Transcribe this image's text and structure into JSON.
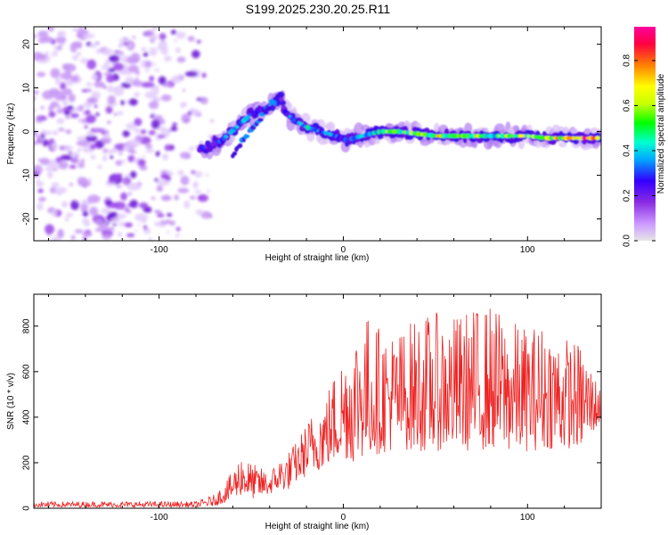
{
  "title": "S199.2025.230.20.25.R11",
  "colors": {
    "snr_line": "#ee2222",
    "noise": "#cc99ff",
    "noise_dark": "#7a24d8",
    "frame": "#000000",
    "colorbar_stops": [
      "#e0e0e0",
      "#cc99ff",
      "#8a2be2",
      "#3300ff",
      "#00b0ff",
      "#00ffd0",
      "#00ff00",
      "#c8ff00",
      "#ffff00",
      "#ff8000",
      "#ff0040",
      "#ff00a0"
    ]
  },
  "chart_data": [
    {
      "type": "heatmap",
      "name": "spectrogram",
      "title": "S199.2025.230.20.25.R11",
      "xlabel": "Height of straight line (km)",
      "ylabel": "Frequency (Hz)",
      "xlim": [
        -168,
        140
      ],
      "ylim": [
        -25,
        24
      ],
      "xticks": [
        -100,
        0,
        100
      ],
      "xtick_labels": [
        "-100",
        "0",
        "100"
      ],
      "yticks": [
        -20,
        -10,
        0,
        10,
        20
      ],
      "ytick_labels": [
        "-20",
        "-10",
        "0",
        "10",
        "20"
      ],
      "colorbar": {
        "label": "Normalized spectral amplitude",
        "range": [
          0,
          0.95
        ],
        "ticks": [
          0,
          0.2,
          0.4,
          0.6,
          0.8
        ],
        "tick_labels": [
          "0.0",
          "0.2",
          "0.4",
          "0.6",
          "0.8"
        ]
      },
      "noise_region_x": [
        -168,
        -72
      ],
      "ridge": {
        "x": [
          -78,
          -66,
          -58,
          -50,
          -44,
          -38,
          -34,
          -32,
          -28,
          -20,
          -12,
          -4,
          2,
          10,
          20,
          30,
          40,
          50,
          60,
          70,
          80,
          90,
          100,
          110,
          120,
          130,
          138
        ],
        "y": [
          -4,
          -2,
          1,
          4,
          5,
          6,
          8,
          5,
          3,
          1,
          0,
          -1,
          -2,
          -1,
          0,
          0,
          -0.5,
          -1,
          -1,
          -1,
          -1,
          -1,
          -1,
          -1.5,
          -1.5,
          -1.5,
          -1.5
        ],
        "amplitude": [
          0.25,
          0.35,
          0.4,
          0.35,
          0.3,
          0.35,
          0.25,
          0.3,
          0.35,
          0.5,
          0.4,
          0.35,
          0.3,
          0.4,
          0.55,
          0.6,
          0.6,
          0.7,
          0.65,
          0.6,
          0.55,
          0.6,
          0.65,
          0.7,
          0.8,
          0.9,
          0.95
        ]
      }
    },
    {
      "type": "line",
      "name": "snr",
      "xlabel": "Height of straight line (km)",
      "ylabel": "SNR (10 * v/v)",
      "xlim": [
        -168,
        140
      ],
      "ylim": [
        0,
        940
      ],
      "xticks": [
        -100,
        0,
        100
      ],
      "xtick_labels": [
        "-100",
        "0",
        "100"
      ],
      "yticks": [
        0,
        200,
        400,
        600,
        800
      ],
      "ytick_labels": [
        "0",
        "200",
        "400",
        "600",
        "800"
      ],
      "series": [
        {
          "name": "SNR",
          "color": "#ee2222",
          "envelope_x": [
            -168,
            -80,
            -70,
            -62,
            -55,
            -50,
            -45,
            -40,
            -35,
            -30,
            -25,
            -20,
            -15,
            -10,
            -5,
            0,
            5,
            10,
            20,
            30,
            40,
            50,
            60,
            70,
            80,
            90,
            100,
            110,
            120,
            130,
            140
          ],
          "envelope_min": [
            5,
            5,
            10,
            30,
            60,
            40,
            50,
            60,
            80,
            80,
            120,
            140,
            160,
            180,
            200,
            220,
            200,
            220,
            240,
            260,
            250,
            250,
            260,
            250,
            260,
            250,
            250,
            260,
            260,
            270,
            380
          ],
          "envelope_max": [
            30,
            30,
            60,
            140,
            250,
            200,
            180,
            160,
            220,
            250,
            300,
            380,
            450,
            500,
            600,
            700,
            780,
            880,
            800,
            780,
            850,
            860,
            850,
            880,
            900,
            830,
            800,
            820,
            760,
            720,
            520
          ]
        }
      ]
    }
  ]
}
